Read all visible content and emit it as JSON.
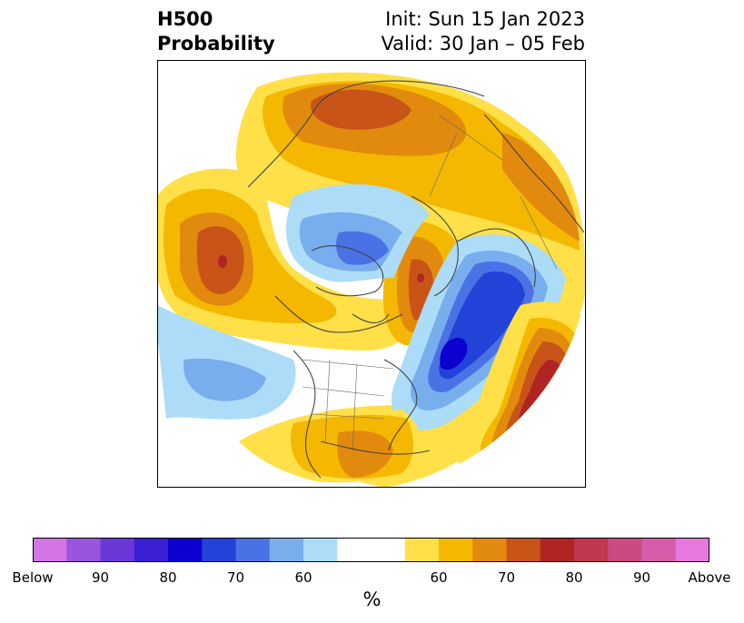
{
  "header": {
    "title_line1": "H500",
    "title_line2": "Probability",
    "init_label": "Init: Sun 15 Jan 2023",
    "valid_label": "Valid: 30 Jan – 05 Feb"
  },
  "colorbar": {
    "colors": [
      "#d474e6",
      "#9b54e0",
      "#6b38d8",
      "#3a1fd4",
      "#0b00d0",
      "#2342d8",
      "#4a72e4",
      "#78aeee",
      "#acdcf8",
      "#ffffff",
      "#ffffff",
      "#ffe048",
      "#f4b800",
      "#e28a0e",
      "#c85418",
      "#b02424",
      "#c03850",
      "#cc4a82",
      "#d65caa",
      "#e678de"
    ],
    "tick_labels": [
      "Below",
      "90",
      "80",
      "70",
      "60",
      "60",
      "70",
      "80",
      "90",
      "Above"
    ],
    "unit": "%"
  },
  "map": {
    "anomaly_palette": {
      "above_50": "#ffe048",
      "above_60": "#f4b800",
      "above_70": "#e28a0e",
      "above_80": "#c85418",
      "above_90": "#b02424",
      "below_50": "#acdcf8",
      "below_60": "#78aeee",
      "below_70": "#4a72e4",
      "below_80": "#2342d8",
      "below_90": "#0b00d0"
    }
  }
}
